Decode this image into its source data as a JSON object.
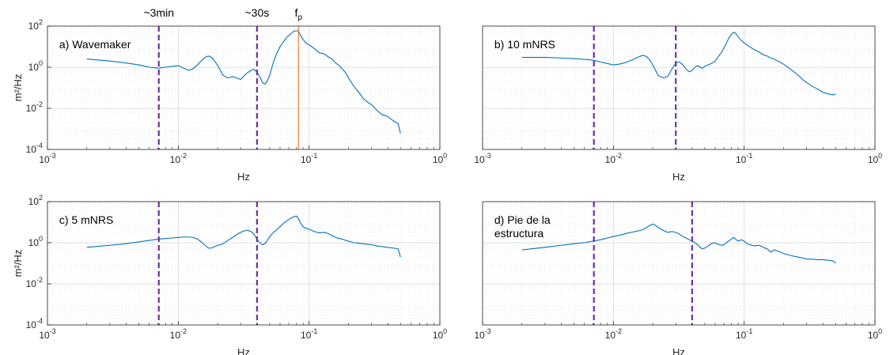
{
  "chart_data": [
    {
      "type": "line",
      "panel_label": "a) Wavemaker",
      "xlabel": "Hz",
      "ylabel": "m²/Hz",
      "xscale": "log",
      "yscale": "log",
      "xlim": [
        0.001,
        1
      ],
      "ylim": [
        0.0001,
        100
      ],
      "yticks_shown": true,
      "grid": true,
      "annotations": [
        {
          "text": "~3min",
          "x": 0.0071
        },
        {
          "text": "~30s",
          "x": 0.04
        },
        {
          "text": "fp",
          "x": 0.083
        }
      ],
      "vlines": [
        {
          "x": 0.0071,
          "style": "dashed",
          "color": "#7030a0"
        },
        {
          "x": 0.04,
          "style": "dashed",
          "color": "#7030a0"
        },
        {
          "x": 0.083,
          "style": "solid",
          "color": "#ed7d31"
        }
      ],
      "series": [
        {
          "color": "#0072bd",
          "x": [
            0.002,
            0.003,
            0.004,
            0.005,
            0.006,
            0.007,
            0.008,
            0.009,
            0.01,
            0.011,
            0.012,
            0.013,
            0.014,
            0.015,
            0.016,
            0.017,
            0.018,
            0.019,
            0.02,
            0.021,
            0.022,
            0.024,
            0.026,
            0.028,
            0.03,
            0.032,
            0.034,
            0.036,
            0.038,
            0.04,
            0.042,
            0.044,
            0.046,
            0.048,
            0.05,
            0.053,
            0.056,
            0.06,
            0.064,
            0.068,
            0.072,
            0.076,
            0.08,
            0.083,
            0.086,
            0.09,
            0.095,
            0.1,
            0.105,
            0.11,
            0.12,
            0.13,
            0.14,
            0.15,
            0.16,
            0.17,
            0.18,
            0.19,
            0.2,
            0.22,
            0.24,
            0.26,
            0.28,
            0.3,
            0.33,
            0.36,
            0.4,
            0.44,
            0.48,
            0.5
          ],
          "y": [
            2.5,
            2.0,
            1.6,
            1.3,
            1.0,
            0.9,
            1.0,
            1.1,
            1.2,
            0.9,
            0.7,
            0.85,
            1.3,
            2.0,
            3.0,
            3.5,
            3.0,
            2.0,
            1.2,
            0.7,
            0.4,
            0.3,
            0.35,
            0.3,
            0.25,
            0.4,
            0.55,
            0.7,
            0.8,
            0.55,
            0.35,
            0.18,
            0.15,
            0.22,
            0.4,
            1.5,
            4.0,
            10,
            18,
            30,
            40,
            55,
            60,
            55,
            35,
            22,
            15,
            12,
            10,
            8,
            5,
            4.5,
            3.2,
            2.5,
            1.6,
            1.2,
            0.8,
            0.55,
            0.3,
            0.12,
            0.06,
            0.03,
            0.02,
            0.015,
            0.008,
            0.005,
            0.004,
            0.0025,
            0.0018,
            0.0006
          ]
        }
      ]
    },
    {
      "type": "line",
      "panel_label": "b) 10 mNRS",
      "xlabel": "Hz",
      "ylabel": "",
      "xscale": "log",
      "yscale": "log",
      "xlim": [
        0.001,
        1
      ],
      "ylim": [
        0.0001,
        100
      ],
      "yticks_shown": false,
      "grid": true,
      "vlines": [
        {
          "x": 0.0071,
          "style": "dashed",
          "color": "#7030a0"
        },
        {
          "x": 0.03,
          "style": "dashed",
          "color": "#7030a0"
        }
      ],
      "series": [
        {
          "color": "#0072bd",
          "x": [
            0.002,
            0.003,
            0.004,
            0.005,
            0.006,
            0.007,
            0.008,
            0.009,
            0.01,
            0.011,
            0.012,
            0.013,
            0.014,
            0.015,
            0.016,
            0.017,
            0.018,
            0.019,
            0.02,
            0.021,
            0.022,
            0.024,
            0.026,
            0.028,
            0.03,
            0.032,
            0.034,
            0.036,
            0.038,
            0.04,
            0.042,
            0.044,
            0.046,
            0.048,
            0.05,
            0.053,
            0.056,
            0.06,
            0.064,
            0.068,
            0.072,
            0.076,
            0.08,
            0.083,
            0.086,
            0.09,
            0.095,
            0.1,
            0.105,
            0.11,
            0.12,
            0.13,
            0.14,
            0.15,
            0.16,
            0.17,
            0.18,
            0.19,
            0.2,
            0.22,
            0.24,
            0.26,
            0.28,
            0.3,
            0.33,
            0.36,
            0.4,
            0.44,
            0.48,
            0.5
          ],
          "y": [
            3.0,
            3.0,
            2.8,
            2.6,
            2.4,
            2.2,
            1.8,
            1.5,
            1.3,
            1.4,
            1.6,
            1.9,
            2.3,
            2.8,
            3.4,
            3.8,
            3.2,
            2.2,
            1.3,
            0.7,
            0.4,
            0.3,
            0.35,
            0.8,
            1.6,
            1.8,
            1.3,
            0.8,
            0.6,
            0.7,
            1.0,
            1.2,
            1.0,
            0.9,
            1.1,
            1.3,
            1.5,
            2.0,
            3.5,
            6.0,
            12,
            25,
            40,
            50,
            45,
            30,
            20,
            15,
            12,
            10,
            7,
            5.5,
            4.0,
            3.5,
            2.8,
            2.5,
            2.0,
            1.7,
            1.4,
            0.9,
            0.6,
            0.4,
            0.25,
            0.18,
            0.12,
            0.09,
            0.06,
            0.05,
            0.045,
            0.05
          ]
        }
      ]
    },
    {
      "type": "line",
      "panel_label": "c) 5 mNRS",
      "xlabel": "Hz",
      "ylabel": "m²/Hz",
      "xscale": "log",
      "yscale": "log",
      "xlim": [
        0.001,
        1
      ],
      "ylim": [
        0.0001,
        100
      ],
      "yticks_shown": true,
      "grid": true,
      "vlines": [
        {
          "x": 0.0071,
          "style": "dashed",
          "color": "#7030a0"
        },
        {
          "x": 0.04,
          "style": "dashed",
          "color": "#7030a0"
        }
      ],
      "series": [
        {
          "color": "#0072bd",
          "x": [
            0.002,
            0.003,
            0.004,
            0.005,
            0.006,
            0.007,
            0.008,
            0.009,
            0.01,
            0.011,
            0.012,
            0.013,
            0.014,
            0.015,
            0.016,
            0.017,
            0.018,
            0.019,
            0.02,
            0.021,
            0.022,
            0.024,
            0.026,
            0.028,
            0.03,
            0.032,
            0.034,
            0.036,
            0.038,
            0.04,
            0.042,
            0.044,
            0.046,
            0.048,
            0.05,
            0.053,
            0.056,
            0.06,
            0.064,
            0.068,
            0.072,
            0.076,
            0.08,
            0.083,
            0.086,
            0.09,
            0.095,
            0.1,
            0.105,
            0.11,
            0.12,
            0.13,
            0.14,
            0.15,
            0.16,
            0.17,
            0.18,
            0.19,
            0.2,
            0.22,
            0.24,
            0.26,
            0.28,
            0.3,
            0.33,
            0.36,
            0.4,
            0.44,
            0.48,
            0.5
          ],
          "y": [
            0.6,
            0.75,
            0.9,
            1.1,
            1.3,
            1.5,
            1.6,
            1.7,
            1.8,
            1.9,
            1.9,
            1.8,
            1.5,
            1.1,
            0.75,
            0.55,
            0.55,
            0.65,
            0.75,
            0.8,
            0.9,
            1.3,
            1.8,
            2.5,
            3.2,
            3.8,
            4.0,
            3.5,
            2.5,
            1.5,
            1.0,
            0.8,
            0.9,
            1.3,
            2.0,
            3.0,
            4.0,
            6.0,
            9.0,
            12,
            15,
            18,
            20,
            15,
            9,
            6,
            5,
            4.5,
            4,
            3.5,
            3,
            3.2,
            2.8,
            2.2,
            1.8,
            1.6,
            1.5,
            1.3,
            1.2,
            1.0,
            0.95,
            0.9,
            0.85,
            0.8,
            0.7,
            0.65,
            0.6,
            0.55,
            0.5,
            0.2
          ]
        }
      ]
    },
    {
      "type": "line",
      "panel_label": "d) Pie de la\nestructura",
      "xlabel": "Hz",
      "ylabel": "",
      "xscale": "log",
      "yscale": "log",
      "xlim": [
        0.001,
        1
      ],
      "ylim": [
        0.0001,
        100
      ],
      "yticks_shown": false,
      "grid": true,
      "vlines": [
        {
          "x": 0.0071,
          "style": "dashed",
          "color": "#7030a0"
        },
        {
          "x": 0.04,
          "style": "dashed",
          "color": "#7030a0"
        }
      ],
      "series": [
        {
          "color": "#0072bd",
          "x": [
            0.002,
            0.003,
            0.004,
            0.005,
            0.006,
            0.007,
            0.008,
            0.009,
            0.01,
            0.011,
            0.012,
            0.013,
            0.014,
            0.015,
            0.016,
            0.017,
            0.018,
            0.019,
            0.02,
            0.021,
            0.022,
            0.024,
            0.026,
            0.028,
            0.03,
            0.032,
            0.034,
            0.036,
            0.038,
            0.04,
            0.042,
            0.044,
            0.046,
            0.048,
            0.05,
            0.053,
            0.056,
            0.06,
            0.064,
            0.068,
            0.072,
            0.076,
            0.08,
            0.083,
            0.086,
            0.09,
            0.095,
            0.1,
            0.105,
            0.11,
            0.12,
            0.13,
            0.14,
            0.15,
            0.16,
            0.17,
            0.18,
            0.19,
            0.2,
            0.22,
            0.24,
            0.26,
            0.28,
            0.3,
            0.33,
            0.36,
            0.4,
            0.44,
            0.48,
            0.5
          ],
          "y": [
            0.45,
            0.6,
            0.75,
            0.9,
            1.0,
            1.2,
            1.4,
            1.7,
            2.0,
            2.3,
            2.6,
            3.0,
            3.3,
            3.6,
            4.0,
            4.5,
            5.5,
            7.0,
            8.0,
            7.0,
            5.5,
            4.0,
            3.2,
            3.5,
            3.2,
            2.6,
            2.0,
            1.7,
            1.4,
            1.2,
            1.0,
            0.8,
            0.6,
            0.5,
            0.55,
            0.7,
            0.9,
            1.0,
            0.8,
            0.75,
            0.9,
            1.2,
            1.5,
            1.8,
            1.5,
            1.2,
            1.4,
            1.2,
            0.9,
            0.8,
            0.7,
            0.75,
            0.6,
            0.5,
            0.35,
            0.45,
            0.4,
            0.35,
            0.3,
            0.25,
            0.22,
            0.2,
            0.18,
            0.16,
            0.16,
            0.15,
            0.15,
            0.14,
            0.13,
            0.1
          ]
        }
      ]
    }
  ]
}
